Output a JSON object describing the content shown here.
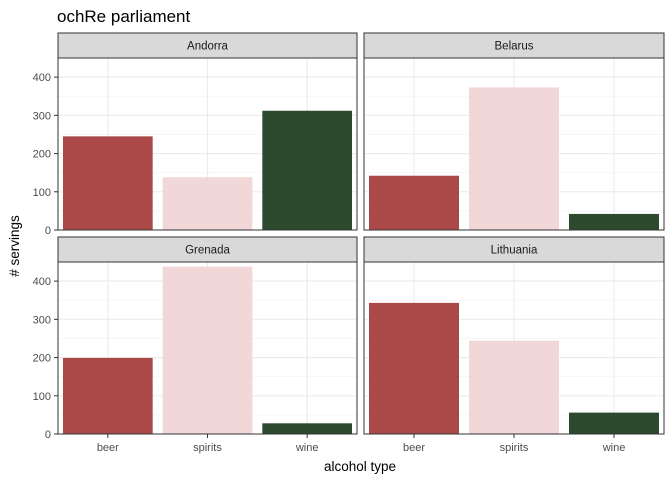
{
  "chart_data": {
    "type": "bar",
    "title": "ochRe parliament",
    "xlabel": "alcohol type",
    "ylabel": "# servings",
    "categories": [
      "beer",
      "spirits",
      "wine"
    ],
    "ylim": [
      0,
      450
    ],
    "yticks": [
      0,
      100,
      200,
      300,
      400
    ],
    "grid": true,
    "legend": "none",
    "colors": {
      "beer": "#ab4848",
      "spirits": "#f2d7d8",
      "wine": "#2e4a2e"
    },
    "panels": [
      {
        "name": "Andorra",
        "values": [
          245,
          138,
          312
        ]
      },
      {
        "name": "Belarus",
        "values": [
          142,
          373,
          42
        ]
      },
      {
        "name": "Grenada",
        "values": [
          199,
          438,
          28
        ]
      },
      {
        "name": "Lithuania",
        "values": [
          343,
          244,
          56
        ]
      }
    ]
  }
}
